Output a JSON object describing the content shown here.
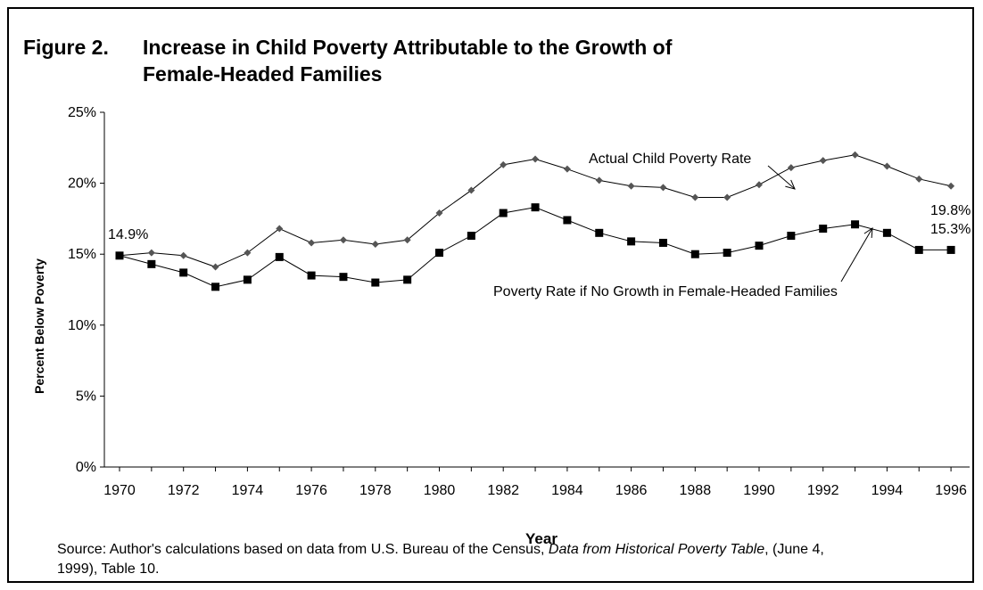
{
  "figure": {
    "label": "Figure 2.",
    "title_line1": "Increase in Child Poverty Attributable to the Growth of",
    "title_line2": "Female-Headed Families"
  },
  "source": {
    "prefix": "Source:  Author's calculations based on data from U.S. Bureau of the Census, ",
    "italic": "Data from Historical Poverty Table",
    "suffix": ", (June 4, 1999), Table 10."
  },
  "chart_data": {
    "type": "line",
    "title": "Increase in Child Poverty Attributable to the Growth of Female-Headed Families",
    "xlabel": "Year",
    "ylabel": "Percent Below Poverty",
    "ylim": [
      0,
      0.25
    ],
    "xlim": [
      1970,
      1996
    ],
    "y_ticks": [
      "0%",
      "5%",
      "10%",
      "15%",
      "20%",
      "25%"
    ],
    "x_ticks": [
      "1970",
      "1972",
      "1974",
      "1976",
      "1978",
      "1980",
      "1982",
      "1984",
      "1986",
      "1988",
      "1990",
      "1992",
      "1994",
      "1996"
    ],
    "grid": false,
    "x": [
      1970,
      1971,
      1972,
      1973,
      1974,
      1975,
      1976,
      1977,
      1978,
      1979,
      1980,
      1981,
      1982,
      1983,
      1984,
      1985,
      1986,
      1987,
      1988,
      1989,
      1990,
      1991,
      1992,
      1993,
      1994,
      1995,
      1996
    ],
    "series": [
      {
        "name": "Actual Child Poverty Rate",
        "marker": "diamond",
        "color": "#555555",
        "values": [
          0.149,
          0.151,
          0.149,
          0.141,
          0.151,
          0.168,
          0.158,
          0.16,
          0.157,
          0.16,
          0.179,
          0.195,
          0.213,
          0.217,
          0.21,
          0.202,
          0.198,
          0.197,
          0.19,
          0.19,
          0.199,
          0.211,
          0.216,
          0.22,
          0.212,
          0.203,
          0.198
        ]
      },
      {
        "name": "Poverty Rate if No Growth in Female-Headed Families",
        "marker": "square",
        "color": "#000000",
        "values": [
          0.149,
          0.143,
          0.137,
          0.127,
          0.132,
          0.148,
          0.135,
          0.134,
          0.13,
          0.132,
          0.151,
          0.163,
          0.179,
          0.183,
          0.174,
          0.165,
          0.159,
          0.158,
          0.15,
          0.151,
          0.156,
          0.163,
          0.168,
          0.171,
          0.165,
          0.153,
          0.153
        ]
      }
    ],
    "annotations": {
      "start_value": "14.9%",
      "end_actual": "19.8%",
      "end_counterfactual": "15.3%",
      "label_actual": "Actual Child Poverty Rate",
      "label_counterfactual": "Poverty Rate if No Growth in Female-Headed Families"
    }
  }
}
